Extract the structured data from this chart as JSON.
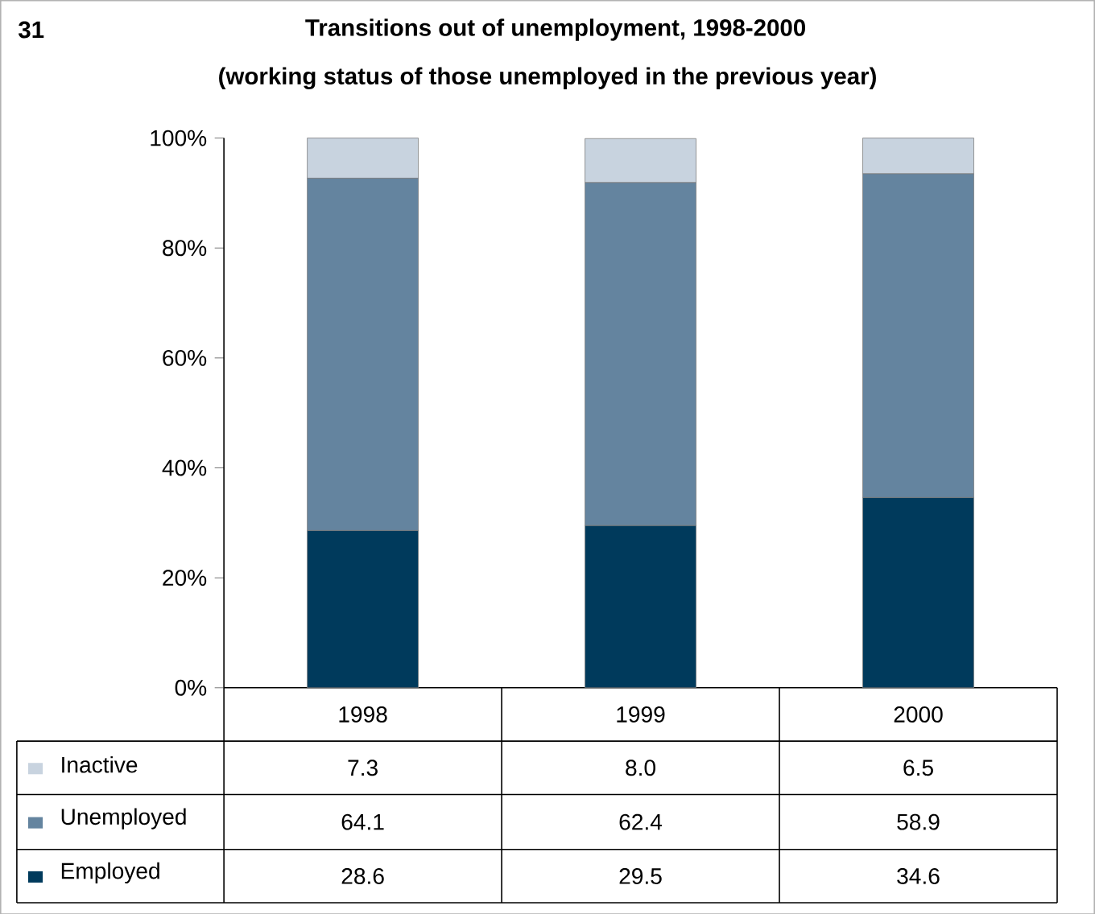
{
  "chart_data": {
    "type": "bar",
    "stacked": true,
    "title": "Transitions out of unemployment, 1998-2000",
    "subtitle": "(working status of those unemployed in the previous year)",
    "annotations": [
      "31"
    ],
    "categories": [
      "1998",
      "1999",
      "2000"
    ],
    "series": [
      {
        "name": "Employed",
        "color": "#003a5c",
        "values": [
          28.6,
          29.5,
          34.6
        ],
        "value_labels": [
          "28.6",
          "29.5",
          "34.6"
        ]
      },
      {
        "name": "Unemployed",
        "color": "#64849f",
        "values": [
          64.1,
          62.4,
          58.9
        ],
        "value_labels": [
          "64.1",
          "62.4",
          "58.9"
        ]
      },
      {
        "name": "Inactive",
        "color": "#c8d3df",
        "values": [
          7.3,
          8.0,
          6.5
        ],
        "value_labels": [
          "7.3",
          "8.0",
          "6.5"
        ]
      }
    ],
    "ylim": [
      0,
      100
    ],
    "yticks": [
      {
        "value": 0,
        "label": "0%"
      },
      {
        "value": 20,
        "label": "20%"
      },
      {
        "value": 40,
        "label": "40%"
      },
      {
        "value": 60,
        "label": "60%"
      },
      {
        "value": 80,
        "label": "80%"
      },
      {
        "value": 100,
        "label": "100%"
      }
    ],
    "legend": "bottom left",
    "grid": false
  }
}
